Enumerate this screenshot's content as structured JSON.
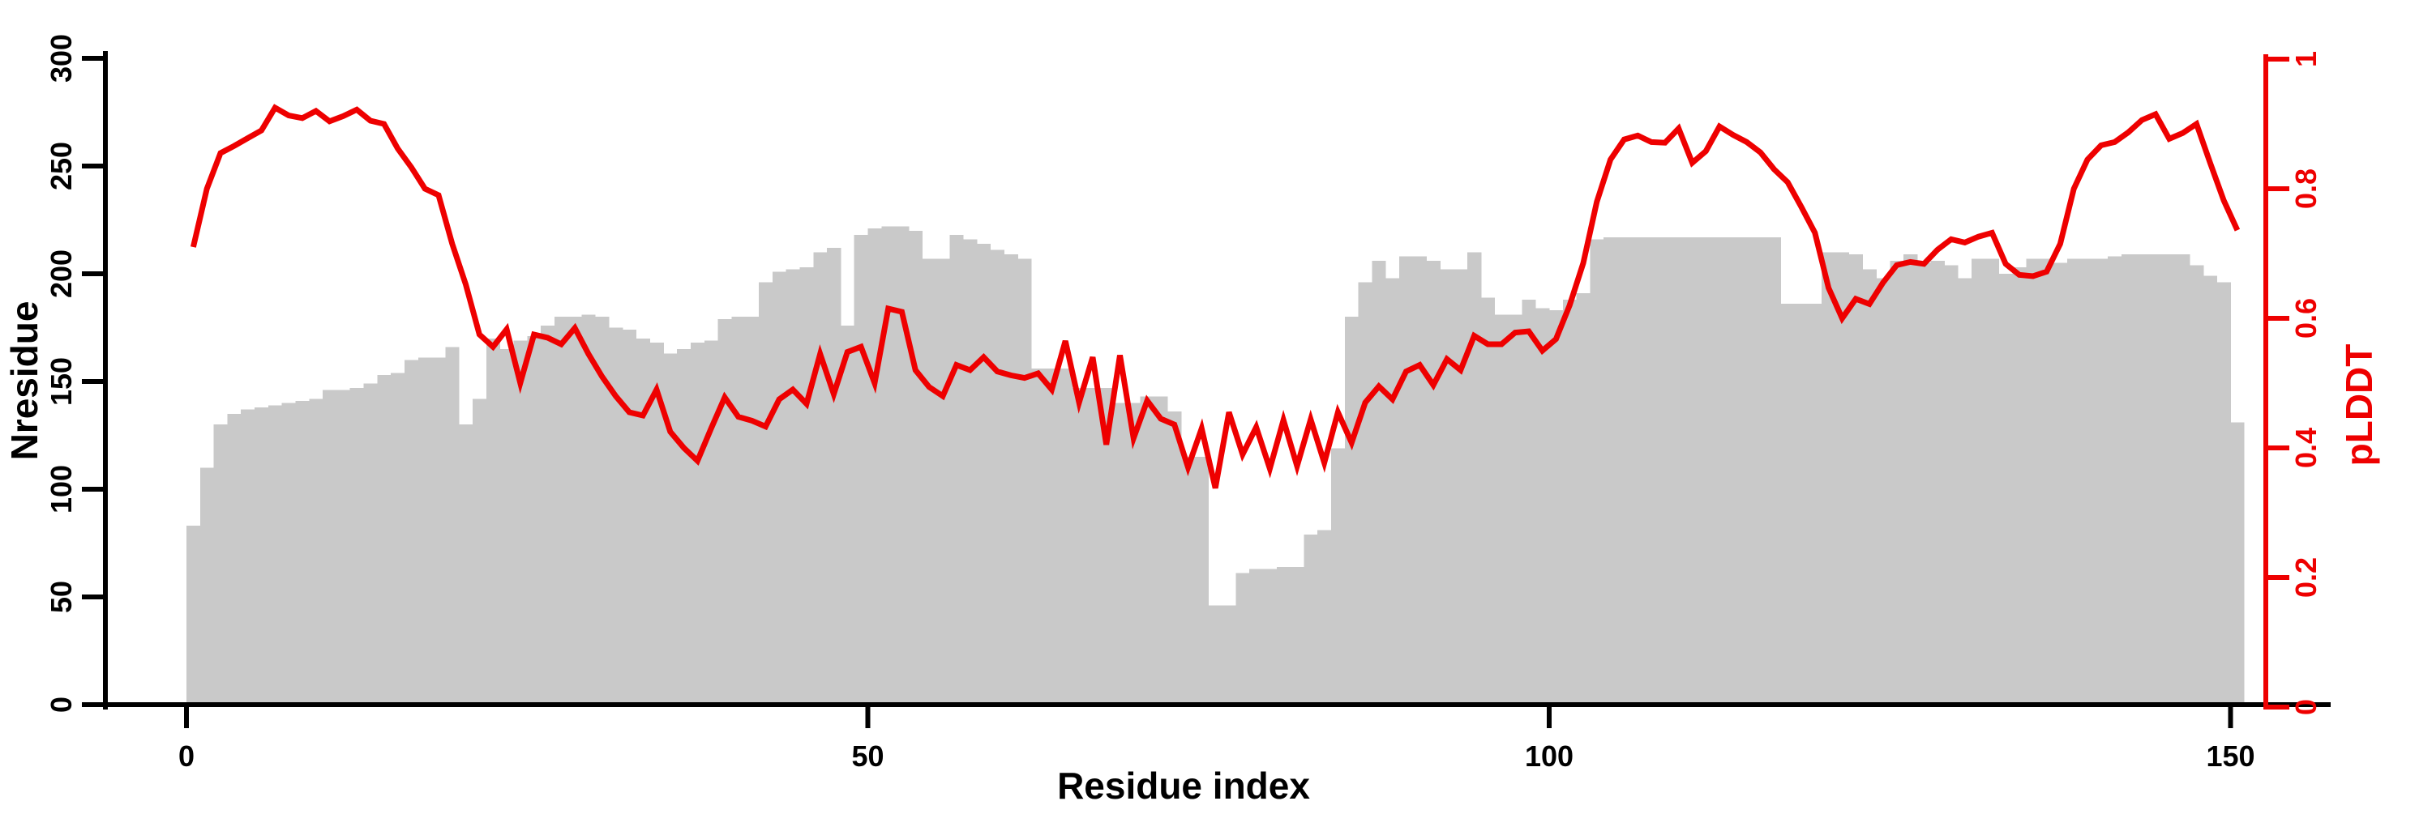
{
  "chart_data": {
    "type": "bar+line dual-axis",
    "title": "",
    "xlabel": "Residue index",
    "ylabel_left": "Nresidue",
    "ylabel_right": "pLDDT",
    "x_ticks": {
      "values": [
        0,
        50,
        100,
        150
      ],
      "labels": [
        "0",
        "50",
        "100",
        "150"
      ]
    },
    "yleft_ticks": {
      "values": [
        0,
        50,
        100,
        150,
        200,
        250,
        300
      ],
      "labels": [
        "0",
        "50",
        "100",
        "150",
        "200",
        "250",
        "300"
      ]
    },
    "yright_ticks": {
      "values": [
        0,
        0.2,
        0.4,
        0.6,
        0.8,
        1
      ],
      "labels": [
        "0",
        "0.2",
        "0.4",
        "0.6",
        "0.8",
        "1"
      ]
    },
    "xlim": [
      0,
      157
    ],
    "ylim_left": [
      0,
      300
    ],
    "ylim_right": [
      0,
      1
    ],
    "grid": false,
    "legend": "none",
    "series": [
      {
        "name": "Nresidue",
        "type": "bar",
        "axis": "left",
        "x_start": 0,
        "bar_width": 1,
        "values": [
          83,
          110,
          130,
          135,
          137,
          138,
          139,
          140,
          141,
          142,
          146,
          146,
          147,
          149,
          153,
          154,
          160,
          161,
          161,
          166,
          130,
          142,
          170,
          165,
          169,
          171,
          176,
          180,
          180,
          181,
          180,
          175,
          174,
          170,
          168,
          163,
          165,
          168,
          169,
          179,
          180,
          180,
          196,
          201,
          202,
          203,
          210,
          212,
          176,
          218,
          221,
          222,
          222,
          220,
          207,
          207,
          218,
          216,
          214,
          211,
          209,
          207,
          156,
          156,
          156,
          147,
          147,
          147,
          140,
          140,
          143,
          143,
          136,
          115,
          115,
          46,
          46,
          61,
          63,
          63,
          64,
          64,
          79,
          81,
          119,
          180,
          196,
          206,
          198,
          208,
          208,
          206,
          202,
          202,
          210,
          189,
          181,
          181,
          188,
          184,
          183,
          188,
          191,
          216,
          217,
          217,
          217,
          217,
          217,
          217,
          217,
          217,
          217,
          217,
          217,
          217,
          217,
          186,
          186,
          186,
          210,
          210,
          209,
          202,
          198,
          206,
          209,
          205,
          206,
          204,
          198,
          207,
          207,
          200,
          203,
          207,
          207,
          205,
          207,
          207,
          207,
          208,
          209,
          209,
          209,
          209,
          209,
          204,
          199,
          196,
          131
        ]
      },
      {
        "name": "pLDDT",
        "type": "line",
        "axis": "right",
        "x_start": 0.5,
        "values": [
          0.71,
          0.8,
          0.855,
          0.866,
          0.878,
          0.89,
          0.925,
          0.913,
          0.909,
          0.92,
          0.904,
          0.912,
          0.922,
          0.905,
          0.9,
          0.862,
          0.833,
          0.8,
          0.79,
          0.715,
          0.652,
          0.575,
          0.556,
          0.583,
          0.5,
          0.575,
          0.57,
          0.56,
          0.585,
          0.545,
          0.51,
          0.48,
          0.455,
          0.45,
          0.49,
          0.425,
          0.4,
          0.38,
          0.43,
          0.478,
          0.448,
          0.442,
          0.433,
          0.475,
          0.49,
          0.468,
          0.545,
          0.483,
          0.548,
          0.556,
          0.5,
          0.615,
          0.61,
          0.52,
          0.494,
          0.48,
          0.528,
          0.52,
          0.54,
          0.518,
          0.512,
          0.508,
          0.515,
          0.49,
          0.565,
          0.47,
          0.54,
          0.405,
          0.543,
          0.415,
          0.473,
          0.445,
          0.436,
          0.37,
          0.43,
          0.338,
          0.455,
          0.39,
          0.432,
          0.368,
          0.443,
          0.372,
          0.444,
          0.377,
          0.455,
          0.408,
          0.47,
          0.495,
          0.475,
          0.518,
          0.528,
          0.497,
          0.537,
          0.52,
          0.573,
          0.56,
          0.56,
          0.578,
          0.58,
          0.55,
          0.568,
          0.62,
          0.685,
          0.78,
          0.845,
          0.876,
          0.882,
          0.872,
          0.871,
          0.893,
          0.84,
          0.858,
          0.896,
          0.883,
          0.872,
          0.856,
          0.83,
          0.81,
          0.772,
          0.732,
          0.647,
          0.6,
          0.63,
          0.622,
          0.655,
          0.682,
          0.687,
          0.684,
          0.706,
          0.722,
          0.717,
          0.726,
          0.732,
          0.684,
          0.667,
          0.665,
          0.672,
          0.715,
          0.8,
          0.845,
          0.867,
          0.872,
          0.887,
          0.906,
          0.915,
          0.877,
          0.886,
          0.9,
          0.84,
          0.782,
          0.736
        ]
      }
    ],
    "colors": {
      "bar_fill": "#c9c9c9",
      "line": "#ee0000",
      "axis_left": "#000000",
      "axis_right": "#ee0000",
      "background": "#ffffff"
    }
  }
}
